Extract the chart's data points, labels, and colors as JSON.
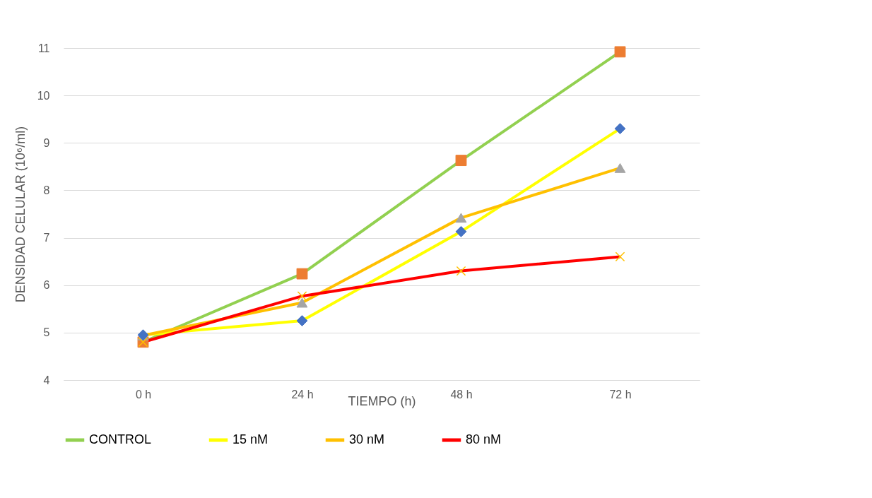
{
  "chart_data": {
    "type": "line",
    "xlabel": "TIEMPO (h)",
    "ylabel": "DENSIDAD CELULAR (10⁶/ml)",
    "categories": [
      "0 h",
      "24 h",
      "48 h",
      "72 h"
    ],
    "ylim": [
      4,
      11
    ],
    "yticks": [
      4,
      5,
      6,
      7,
      8,
      9,
      10,
      11
    ],
    "grid": "y",
    "legend": "bottom",
    "line_style": "solid",
    "series": [
      {
        "name": "CONTROL",
        "color": "#92d050",
        "marker": "square",
        "colors": [
          "#ed7d31",
          "#ed7d31",
          "#ed7d31",
          "#ed7d31"
        ],
        "values": [
          4.8,
          6.24,
          8.63,
          10.92
        ]
      },
      {
        "name": "15 nM",
        "color": "#ffff00",
        "marker": "diamond",
        "colors": [
          "#4472c4",
          "#4472c4",
          "#4472c4",
          "#4472c4"
        ],
        "values": [
          4.95,
          5.25,
          7.13,
          9.3
        ]
      },
      {
        "name": "30 nM",
        "color": "#ffc000",
        "marker": "triangle",
        "colors": [
          "#a5a5a5",
          "#a5a5a5",
          "#a5a5a5",
          "#a5a5a5"
        ],
        "values": [
          4.94,
          5.63,
          7.42,
          8.47
        ]
      },
      {
        "name": "80 nM",
        "color": "#ff0000",
        "marker": "cross",
        "colors": [
          "#ffc000",
          "#ffc000",
          "#ffc000",
          "#ffc000"
        ],
        "values": [
          4.8,
          5.77,
          6.3,
          6.6
        ]
      }
    ]
  }
}
